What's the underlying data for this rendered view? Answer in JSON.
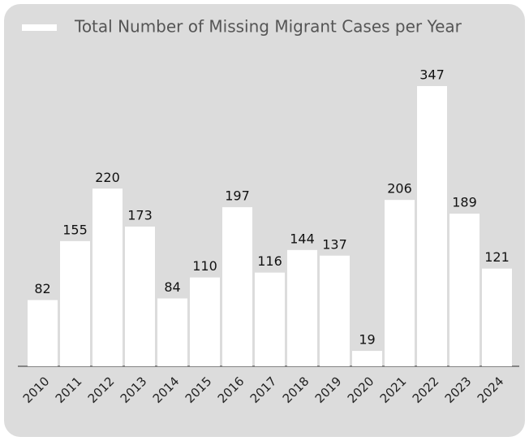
{
  "chart_data": {
    "type": "bar",
    "categories": [
      "2010",
      "2011",
      "2012",
      "2013",
      "2014",
      "2015",
      "2016",
      "2017",
      "2018",
      "2019",
      "2020",
      "2021",
      "2022",
      "2023",
      "2024"
    ],
    "series": [
      {
        "name": "Total Number of Missing Migrant Cases per Year",
        "color": "#ffffff",
        "values": [
          82,
          155,
          220,
          173,
          84,
          110,
          197,
          116,
          144,
          137,
          19,
          206,
          347,
          189,
          121
        ]
      }
    ]
  }
}
